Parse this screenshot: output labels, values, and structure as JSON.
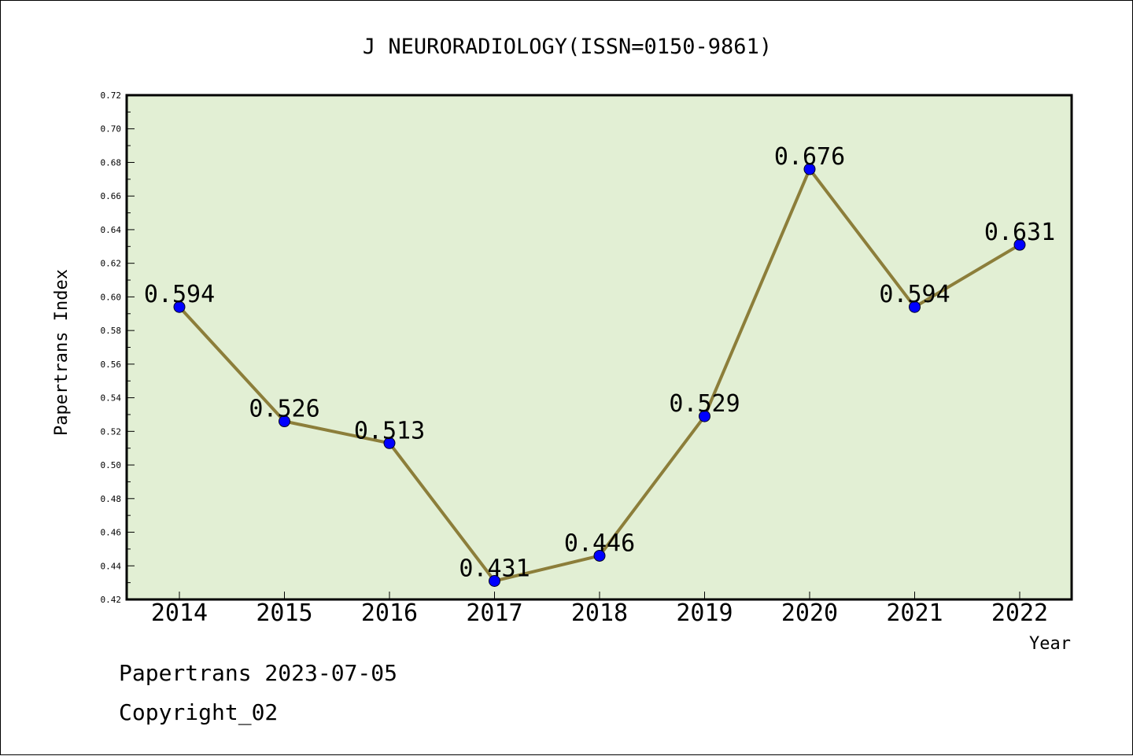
{
  "chart_data": {
    "type": "line",
    "title": "J NEURORADIOLOGY(ISSN=0150-9861)",
    "xlabel": "Year",
    "ylabel": "Papertrans Index",
    "categories": [
      "2014",
      "2015",
      "2016",
      "2017",
      "2018",
      "2019",
      "2020",
      "2021",
      "2022"
    ],
    "values": [
      0.594,
      0.526,
      0.513,
      0.431,
      0.446,
      0.529,
      0.676,
      0.594,
      0.631
    ],
    "data_labels": [
      "0.594",
      "0.526",
      "0.513",
      "0.431",
      "0.446",
      "0.529",
      "0.676",
      "0.594",
      "0.631"
    ],
    "ylim": [
      0.42,
      0.72
    ],
    "yticks": [
      "0.42",
      "0.44",
      "0.46",
      "0.48",
      "0.50",
      "0.52",
      "0.54",
      "0.56",
      "0.58",
      "0.60",
      "0.62",
      "0.64",
      "0.66",
      "0.68",
      "0.70",
      "0.72"
    ],
    "grid": false,
    "legend": "none",
    "colors": {
      "plot_background": "#e2efd4",
      "line": "#8c7e3a",
      "marker": "#0000ff"
    }
  },
  "footer": {
    "line1": "Papertrans 2023-07-05",
    "line2": "Copyright_02"
  }
}
